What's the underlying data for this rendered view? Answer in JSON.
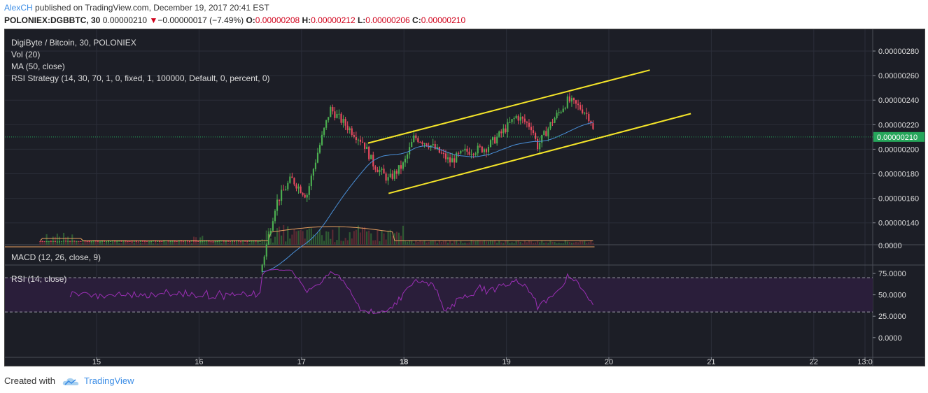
{
  "header": {
    "author": "AlexCH",
    "published": "published on TradingView.com, December 19, 2017 20:41 EST",
    "symbol": "POLONIEX:DGBBTC, 30",
    "price": "0.00000210",
    "change_arrow": "▼",
    "change": "−0.00000017 (−7.49%)",
    "o_label": "O:",
    "o_value": "0.00000208",
    "h_label": "H:",
    "h_value": "0.00000212",
    "l_label": "L:",
    "l_value": "0.00000206",
    "c_label": "C:",
    "c_value": "0.00000210"
  },
  "legend": {
    "title": "DigiByte / Bitcoin, 30, POLONIEX",
    "vol": "Vol (20)",
    "ma": "MA (50, close)",
    "strategy": "RSI Strategy (14, 30, 70, 1, 0, fixed, 1, 100000, Default, 0, percent, 0)",
    "macd": "MACD (12, 26, close, 9)",
    "rsi": "RSI (14, close)"
  },
  "footer": {
    "created_with": "Created with",
    "brand": "TradingView"
  },
  "colors": {
    "background": "#1c1e26",
    "up": "#4caf50",
    "down": "#e84a5f",
    "channel": "#f5e529",
    "ma": "#4a90d9",
    "vol_ma": "#e8a060",
    "rsi": "#9b2fb5",
    "price_label": "#26a65b"
  },
  "chart_data": {
    "type": "candlestick",
    "price_axis": {
      "ticks": [
        "0.00000280",
        "0.00000260",
        "0.00000240",
        "0.00000220",
        "0.00000200",
        "0.00000180",
        "0.00000160",
        "0.00000140"
      ],
      "tick_values": [
        2.8e-06,
        2.6e-06,
        2.4e-06,
        2.2e-06,
        2e-06,
        1.8e-06,
        1.6e-06,
        1.4e-06
      ],
      "current_price": "0.00000210",
      "current_value": 2.1e-06
    },
    "volume_axis": {
      "ticks": [
        "0.0000"
      ]
    },
    "rsi_axis": {
      "ticks": [
        "75.0000",
        "50.0000",
        "25.0000",
        "0.0000"
      ],
      "tick_values": [
        75,
        50,
        25,
        0
      ],
      "bands": [
        70,
        30
      ]
    },
    "x_axis": {
      "labels": [
        "15",
        "16",
        "17",
        "18",
        "19",
        "20",
        "21",
        "22",
        "13:0"
      ],
      "label_days": [
        15,
        16,
        17,
        18,
        19,
        20,
        21,
        22,
        22.5
      ],
      "bold": "18"
    },
    "close_path": [
      [
        15.55,
        1e-06
      ],
      [
        16.3,
        1e-06
      ],
      [
        16.6,
        1e-06
      ],
      [
        16.75,
        1.56e-06
      ],
      [
        16.9,
        1.76e-06
      ],
      [
        17.05,
        1.62e-06
      ],
      [
        17.15,
        1.95e-06
      ],
      [
        17.28,
        2.33e-06
      ],
      [
        17.45,
        2.18e-06
      ],
      [
        17.6,
        2.06e-06
      ],
      [
        17.7,
        1.88e-06
      ],
      [
        17.85,
        1.75e-06
      ],
      [
        18.0,
        1.88e-06
      ],
      [
        18.1,
        2.1e-06
      ],
      [
        18.25,
        2.04e-06
      ],
      [
        18.45,
        1.9e-06
      ],
      [
        18.6,
        1.98e-06
      ],
      [
        18.8,
        2.01e-06
      ],
      [
        18.95,
        2.13e-06
      ],
      [
        19.1,
        2.27e-06
      ],
      [
        19.25,
        2.18e-06
      ],
      [
        19.3,
        2.02e-06
      ],
      [
        19.45,
        2.23e-06
      ],
      [
        19.6,
        2.4e-06
      ],
      [
        19.75,
        2.32e-06
      ],
      [
        19.82,
        2.25e-06
      ],
      [
        19.86,
        2.1e-06
      ]
    ],
    "channel_upper": [
      [
        17.65,
        2.05e-06
      ],
      [
        20.4,
        2.645e-06
      ]
    ],
    "channel_lower": [
      [
        17.85,
        1.64e-06
      ],
      [
        20.8,
        2.29e-06
      ]
    ]
  }
}
